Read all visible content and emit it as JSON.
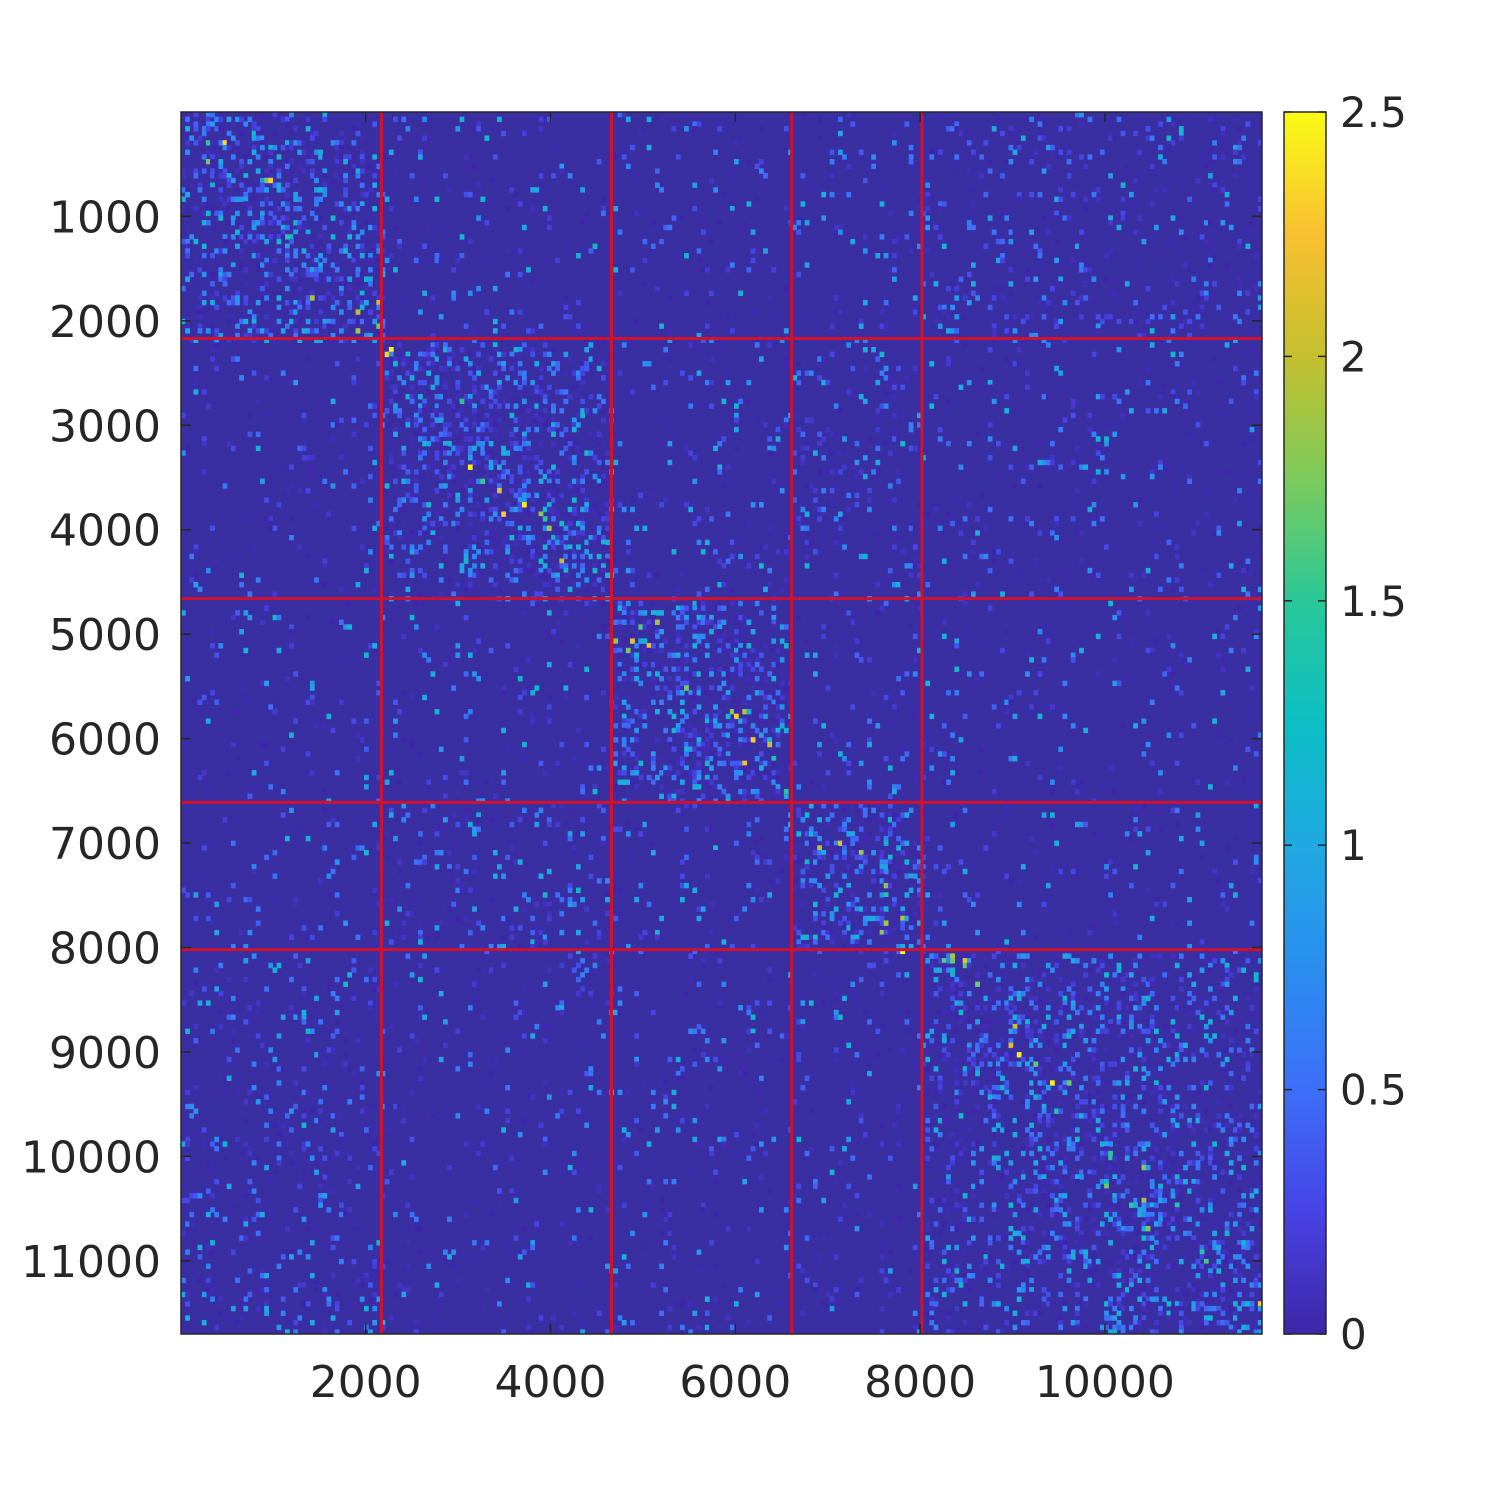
{
  "chart_data": {
    "type": "heatmap",
    "title": "",
    "xlabel": "",
    "ylabel": "",
    "xlim": [
      1,
      11700
    ],
    "ylim": [
      1,
      11700
    ],
    "y_reversed": true,
    "x_ticks": [
      2000,
      4000,
      6000,
      8000,
      10000
    ],
    "x_tick_labels": [
      "2000",
      "4000",
      "6000",
      "8000",
      "10000"
    ],
    "y_ticks": [
      1000,
      2000,
      3000,
      4000,
      5000,
      6000,
      7000,
      8000,
      9000,
      10000,
      11000
    ],
    "y_tick_labels": [
      "1000",
      "2000",
      "3000",
      "4000",
      "5000",
      "6000",
      "7000",
      "8000",
      "9000",
      "10000",
      "11000"
    ],
    "block_boundaries": [
      2170,
      4660,
      6610,
      8020
    ],
    "boundary_color": "#d0122f",
    "colormap": "parula",
    "clim": [
      0,
      2.5
    ],
    "colorbar_ticks": [
      0,
      0.5,
      1,
      1.5,
      2,
      2.5
    ],
    "colorbar_tick_labels": [
      "0",
      "0.5",
      "1",
      "1.5",
      "2",
      "2.5"
    ],
    "background_color": "#3a2ea3",
    "grid": false
  }
}
